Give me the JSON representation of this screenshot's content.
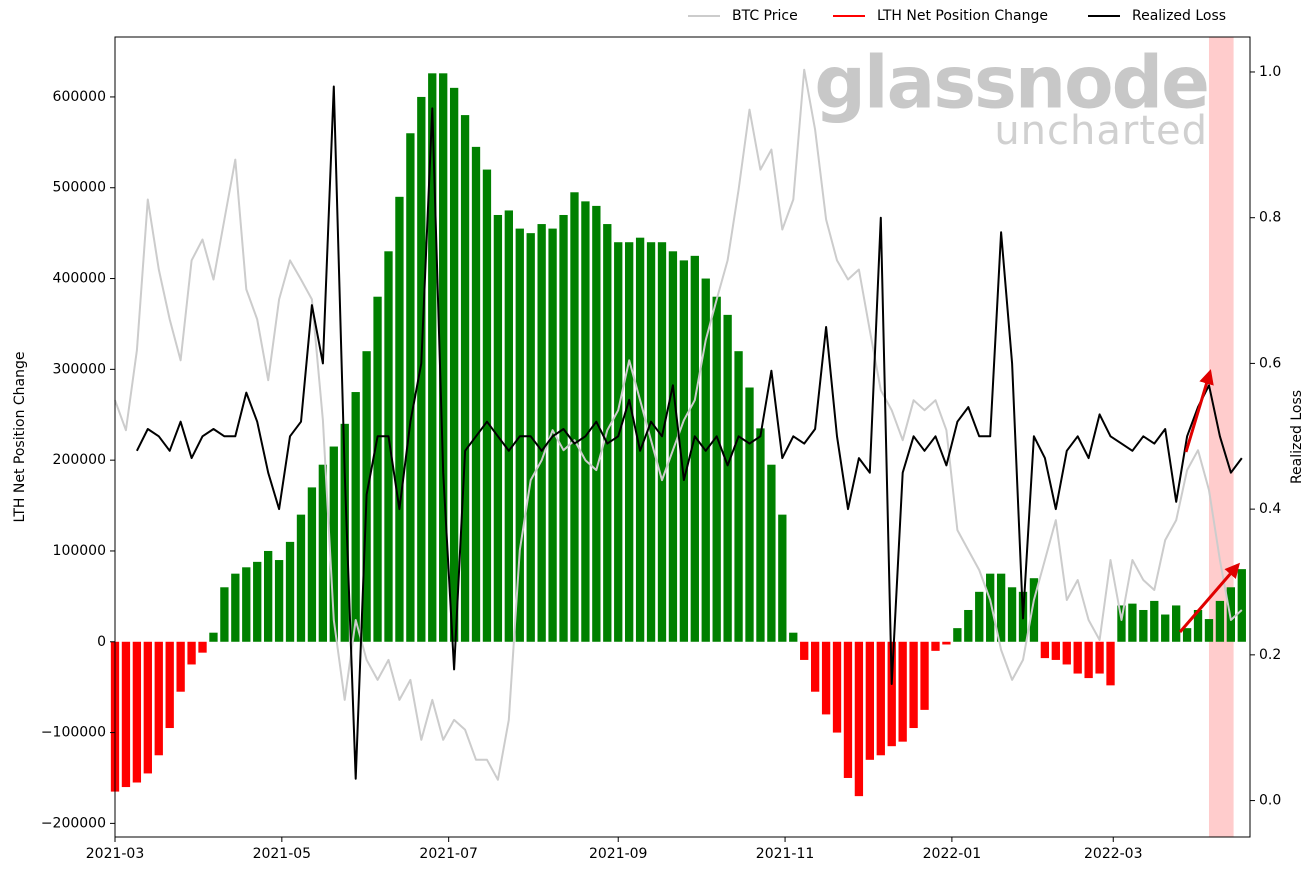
{
  "chart_data": {
    "type": "bar_line",
    "y_label": "LTH Net Position Change",
    "y2_label": "Realized Loss",
    "watermark": [
      "glassnode",
      "uncharted"
    ],
    "xlim": [
      0,
      415
    ],
    "xticks": [
      {
        "value": 0,
        "label": "2021-03"
      },
      {
        "value": 61,
        "label": "2021-05"
      },
      {
        "value": 122,
        "label": "2021-07"
      },
      {
        "value": 184,
        "label": "2021-09"
      },
      {
        "value": 245,
        "label": "2021-11"
      },
      {
        "value": 306,
        "label": "2022-01"
      },
      {
        "value": 365,
        "label": "2022-03"
      }
    ],
    "ylim": [
      -215000,
      666000
    ],
    "yticks": [
      {
        "value": -200000,
        "label": "−200000"
      },
      {
        "value": -100000,
        "label": "−100000"
      },
      0,
      100000,
      200000,
      300000,
      400000,
      500000,
      600000
    ],
    "y2lim": [
      -0.05,
      1.048
    ],
    "y2ticks": [
      {
        "value": 0,
        "label": "0.0"
      },
      0.2,
      0.4,
      0.6,
      0.8,
      {
        "value": 1,
        "label": "1.0"
      }
    ],
    "highlight_span": [
      400,
      409
    ],
    "highlight_color": "#ffcccc",
    "x": [
      0,
      4,
      8,
      12,
      16,
      20,
      24,
      28,
      32,
      36,
      40,
      44,
      48,
      52,
      56,
      60,
      64,
      68,
      72,
      76,
      80,
      84,
      88,
      92,
      96,
      100,
      104,
      108,
      112,
      116,
      120,
      124,
      128,
      132,
      136,
      140,
      144,
      148,
      152,
      156,
      160,
      164,
      168,
      172,
      176,
      180,
      184,
      188,
      192,
      196,
      200,
      204,
      208,
      212,
      216,
      220,
      224,
      228,
      232,
      236,
      240,
      244,
      248,
      252,
      256,
      260,
      264,
      268,
      272,
      276,
      280,
      284,
      288,
      292,
      296,
      300,
      304,
      308,
      312,
      316,
      320,
      324,
      328,
      332,
      336,
      340,
      344,
      348,
      352,
      356,
      360,
      364,
      368,
      372,
      376,
      380,
      384,
      388,
      392,
      396,
      400,
      404,
      408,
      412
    ],
    "series": [
      {
        "name": "BTC Price",
        "kind": "line",
        "color": "#cccccc",
        "values": [
          266000,
          233000,
          321000,
          487000,
          410000,
          355000,
          310000,
          420000,
          443000,
          399000,
          465000,
          531000,
          388000,
          355000,
          288000,
          377000,
          420000,
          399000,
          377000,
          244000,
          24000,
          -64000,
          24000,
          -20000,
          -42000,
          -20000,
          -64000,
          -42000,
          -108000,
          -64000,
          -108000,
          -86000,
          -97000,
          -130000,
          -130000,
          -152000,
          -86000,
          101000,
          178000,
          200000,
          233000,
          211000,
          222000,
          200000,
          189000,
          233000,
          255000,
          310000,
          266000,
          222000,
          178000,
          211000,
          244000,
          266000,
          332000,
          377000,
          420000,
          498000,
          586000,
          520000,
          542000,
          454000,
          487000,
          630000,
          564000,
          465000,
          420000,
          399000,
          410000,
          343000,
          277000,
          255000,
          222000,
          266000,
          255000,
          266000,
          233000,
          123000,
          101000,
          79000,
          46000,
          -9000,
          -42000,
          -20000,
          46000,
          90000,
          134000,
          46000,
          68000,
          24000,
          2000,
          90000,
          24000,
          90000,
          68000,
          57000,
          112000,
          134000,
          189000,
          211000,
          167000,
          90000,
          24000,
          35000
        ]
      },
      {
        "name": "LTH Net Position Change",
        "kind": "bar",
        "color": "red",
        "positive_color": "green",
        "values": [
          -165000,
          -160000,
          -155000,
          -145000,
          -125000,
          -95000,
          -55000,
          -25000,
          -12000,
          10000,
          60000,
          75000,
          82000,
          88000,
          100000,
          90000,
          110000,
          140000,
          170000,
          195000,
          215000,
          240000,
          275000,
          320000,
          380000,
          430000,
          490000,
          560000,
          600000,
          626000,
          626000,
          610000,
          580000,
          545000,
          520000,
          470000,
          475000,
          455000,
          450000,
          460000,
          455000,
          470000,
          495000,
          485000,
          480000,
          460000,
          440000,
          440000,
          445000,
          440000,
          440000,
          430000,
          420000,
          425000,
          400000,
          380000,
          360000,
          320000,
          280000,
          235000,
          195000,
          140000,
          10000,
          -20000,
          -55000,
          -80000,
          -100000,
          -150000,
          -170000,
          -130000,
          -125000,
          -115000,
          -110000,
          -95000,
          -75000,
          -10000,
          -3000,
          15000,
          35000,
          55000,
          75000,
          75000,
          60000,
          55000,
          70000,
          -18000,
          -20000,
          -25000,
          -35000,
          -40000,
          -35000,
          -48000,
          40000,
          42000,
          35000,
          45000,
          30000,
          40000,
          15000,
          35000,
          25000,
          45000,
          60000,
          80000
        ]
      },
      {
        "name": "Realized Loss",
        "kind": "line",
        "axis": "y2",
        "color": "#000000",
        "values": [
          null,
          null,
          0.48,
          0.51,
          0.5,
          0.48,
          0.52,
          0.47,
          0.5,
          0.51,
          0.5,
          0.5,
          0.56,
          0.52,
          0.45,
          0.4,
          0.5,
          0.52,
          0.68,
          0.6,
          0.98,
          0.45,
          0.03,
          0.42,
          0.5,
          0.5,
          0.4,
          0.52,
          0.6,
          0.95,
          0.45,
          0.18,
          0.48,
          0.5,
          0.52,
          0.5,
          0.48,
          0.5,
          0.5,
          0.48,
          0.5,
          0.51,
          0.49,
          0.5,
          0.52,
          0.49,
          0.5,
          0.55,
          0.48,
          0.52,
          0.5,
          0.57,
          0.44,
          0.5,
          0.48,
          0.5,
          0.46,
          0.5,
          0.49,
          0.5,
          0.59,
          0.47,
          0.5,
          0.49,
          0.51,
          0.65,
          0.5,
          0.4,
          0.47,
          0.45,
          0.8,
          0.16,
          0.45,
          0.5,
          0.48,
          0.5,
          0.46,
          0.52,
          0.54,
          0.5,
          0.5,
          0.78,
          0.6,
          0.25,
          0.5,
          0.47,
          0.4,
          0.48,
          0.5,
          0.47,
          0.53,
          0.5,
          0.49,
          0.48,
          0.5,
          0.49,
          0.51,
          0.41,
          0.5,
          0.54,
          0.57,
          0.5,
          0.45,
          0.47
        ]
      }
    ]
  }
}
